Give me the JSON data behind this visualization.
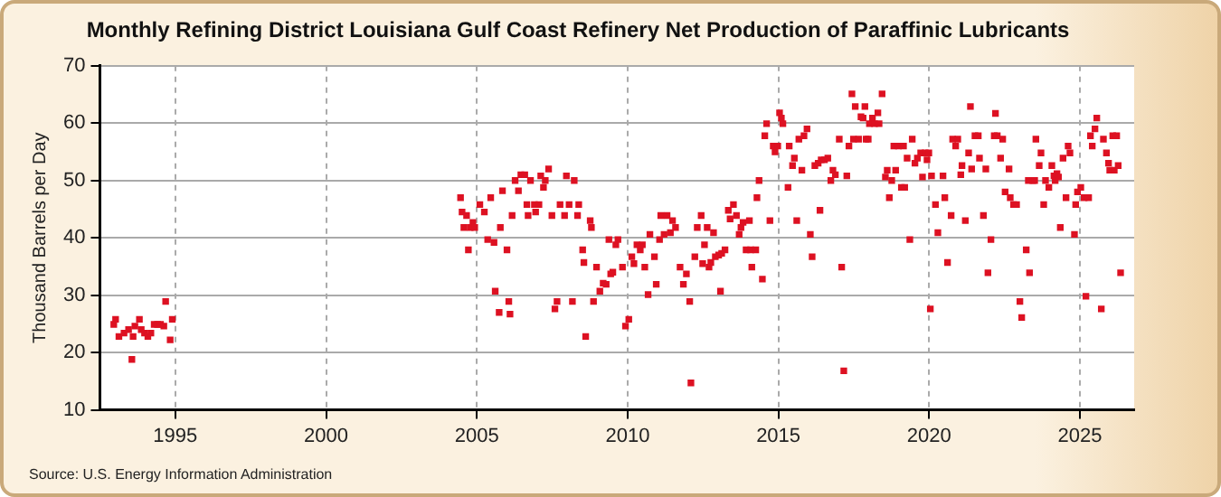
{
  "chart_data": {
    "type": "scatter",
    "title": "Monthly Refining District Louisiana Gulf Coast Refinery Net Production of Paraffinic Lubricants",
    "ylabel": "Thousand Barrels per Day",
    "annotations": [
      "Source: U.S. Energy Information Administration"
    ],
    "xlim": [
      1992.5,
      2026.8
    ],
    "xticks": [
      1995,
      2000,
      2005,
      2010,
      2015,
      2020,
      2025
    ],
    "ylim": [
      10,
      70
    ],
    "yticks": [
      10,
      20,
      30,
      40,
      50,
      60,
      70
    ],
    "grid": true,
    "legend": false,
    "marker": "square",
    "series": [
      {
        "color": "#dd1122",
        "x": [
          1992.96,
          1993.02,
          1993.13,
          1993.3,
          1993.45,
          1993.56,
          1993.6,
          1993.66,
          1993.81,
          1993.87,
          1993.98,
          1994.09,
          1994.19,
          1994.3,
          1994.41,
          1994.51,
          1994.62,
          1994.68,
          1994.83,
          1994.9,
          2004.46,
          2004.51,
          2004.57,
          2004.66,
          2004.72,
          2004.78,
          2004.87,
          2004.93,
          2005.1,
          2005.25,
          2005.36,
          2005.46,
          2005.57,
          2005.61,
          2005.74,
          2005.78,
          2005.85,
          2006.0,
          2006.06,
          2006.1,
          2006.17,
          2006.27,
          2006.38,
          2006.46,
          2006.59,
          2006.66,
          2006.7,
          2006.78,
          2006.91,
          2006.95,
          2007.06,
          2007.12,
          2007.21,
          2007.27,
          2007.38,
          2007.49,
          2007.59,
          2007.66,
          2007.76,
          2007.91,
          2007.97,
          2008.06,
          2008.17,
          2008.23,
          2008.34,
          2008.38,
          2008.51,
          2008.55,
          2008.61,
          2008.76,
          2008.8,
          2008.87,
          2008.97,
          2009.08,
          2009.19,
          2009.29,
          2009.38,
          2009.44,
          2009.51,
          2009.61,
          2009.68,
          2009.83,
          2009.93,
          2010.04,
          2010.14,
          2010.21,
          2010.31,
          2010.42,
          2010.49,
          2010.57,
          2010.68,
          2010.74,
          2010.89,
          2010.95,
          2011.06,
          2011.1,
          2011.21,
          2011.31,
          2011.42,
          2011.49,
          2011.59,
          2011.74,
          2011.85,
          2011.95,
          2012.06,
          2012.1,
          2012.23,
          2012.31,
          2012.44,
          2012.49,
          2012.55,
          2012.64,
          2012.7,
          2012.76,
          2012.85,
          2012.91,
          2013.02,
          2013.08,
          2013.12,
          2013.23,
          2013.34,
          2013.4,
          2013.51,
          2013.61,
          2013.7,
          2013.76,
          2013.83,
          2013.93,
          2014.04,
          2014.08,
          2014.12,
          2014.25,
          2014.29,
          2014.36,
          2014.47,
          2014.55,
          2014.61,
          2014.72,
          2014.83,
          2014.89,
          2014.98,
          2015.04,
          2015.1,
          2015.15,
          2015.32,
          2015.36,
          2015.47,
          2015.53,
          2015.61,
          2015.68,
          2015.78,
          2015.85,
          2015.95,
          2016.06,
          2016.12,
          2016.21,
          2016.32,
          2016.38,
          2016.42,
          2016.53,
          2016.64,
          2016.74,
          2016.81,
          2016.89,
          2017.02,
          2017.1,
          2017.17,
          2017.27,
          2017.34,
          2017.44,
          2017.49,
          2017.55,
          2017.66,
          2017.74,
          2017.81,
          2017.87,
          2017.91,
          2017.98,
          2018.02,
          2018.12,
          2018.19,
          2018.3,
          2018.34,
          2018.44,
          2018.55,
          2018.61,
          2018.68,
          2018.76,
          2018.83,
          2018.89,
          2018.98,
          2019.08,
          2019.15,
          2019.19,
          2019.27,
          2019.36,
          2019.44,
          2019.53,
          2019.61,
          2019.72,
          2019.78,
          2019.87,
          2019.93,
          2019.99,
          2020.04,
          2020.08,
          2020.21,
          2020.29,
          2020.46,
          2020.52,
          2020.61,
          2020.73,
          2020.78,
          2020.88,
          2020.95,
          2021.05,
          2021.09,
          2021.2,
          2021.31,
          2021.37,
          2021.41,
          2021.52,
          2021.63,
          2021.67,
          2021.8,
          2021.88,
          2021.95,
          2022.05,
          2022.16,
          2022.2,
          2022.26,
          2022.37,
          2022.44,
          2022.52,
          2022.65,
          2022.69,
          2022.8,
          2022.9,
          2023.01,
          2023.07,
          2023.22,
          2023.29,
          2023.33,
          2023.44,
          2023.5,
          2023.54,
          2023.65,
          2023.71,
          2023.8,
          2023.86,
          2023.97,
          2024.07,
          2024.14,
          2024.18,
          2024.24,
          2024.29,
          2024.35,
          2024.44,
          2024.54,
          2024.61,
          2024.67,
          2024.82,
          2024.86,
          2024.92,
          2025.03,
          2025.14,
          2025.2,
          2025.29,
          2025.35,
          2025.41,
          2025.5,
          2025.56,
          2025.71,
          2025.78,
          2025.88,
          2025.95,
          2025.99,
          2026.09,
          2026.14,
          2026.22,
          2026.27,
          2026.35
        ],
        "values": [
          24.9,
          25.8,
          22.8,
          23.4,
          24.0,
          18.8,
          22.8,
          24.6,
          25.8,
          24.0,
          23.4,
          22.8,
          23.4,
          24.9,
          24.9,
          24.9,
          24.6,
          28.9,
          22.2,
          25.8,
          47.0,
          44.5,
          41.8,
          43.9,
          37.9,
          41.8,
          42.7,
          41.8,
          45.8,
          44.5,
          39.7,
          47.0,
          39.2,
          30.7,
          27.0,
          41.8,
          48.2,
          37.9,
          28.9,
          26.7,
          43.9,
          50.0,
          48.2,
          51.0,
          51.0,
          45.8,
          43.9,
          50.0,
          45.8,
          44.5,
          45.8,
          50.8,
          48.8,
          50.0,
          52.0,
          43.9,
          27.6,
          28.9,
          45.8,
          43.9,
          50.8,
          45.8,
          28.9,
          50.0,
          43.9,
          45.8,
          37.9,
          35.7,
          22.8,
          43.0,
          41.8,
          28.9,
          34.9,
          30.7,
          32.1,
          31.9,
          39.7,
          33.7,
          34.0,
          38.8,
          39.7,
          34.9,
          24.6,
          25.8,
          36.7,
          35.5,
          38.8,
          37.9,
          38.8,
          34.9,
          30.1,
          40.6,
          36.7,
          31.9,
          39.7,
          43.9,
          40.6,
          43.9,
          40.9,
          43.0,
          41.8,
          34.9,
          31.9,
          33.7,
          28.9,
          14.7,
          36.7,
          41.8,
          43.9,
          35.5,
          38.8,
          41.8,
          34.9,
          35.7,
          40.9,
          36.7,
          37.0,
          30.7,
          37.3,
          37.9,
          44.8,
          43.3,
          45.8,
          43.9,
          40.6,
          41.8,
          42.7,
          37.9,
          43.0,
          37.9,
          34.9,
          37.9,
          47.0,
          50.0,
          32.8,
          57.8,
          59.9,
          43.0,
          56.0,
          55.0,
          56.0,
          61.8,
          60.9,
          59.9,
          48.8,
          56.0,
          52.6,
          53.9,
          43.0,
          57.2,
          51.8,
          57.8,
          59.0,
          40.6,
          36.7,
          52.6,
          53.0,
          44.8,
          53.6,
          53.6,
          53.9,
          50.0,
          51.8,
          51.0,
          57.2,
          34.9,
          16.8,
          50.8,
          56.0,
          65.1,
          57.2,
          62.9,
          57.2,
          61.1,
          60.9,
          62.9,
          57.2,
          57.2,
          59.9,
          60.9,
          59.9,
          61.8,
          59.9,
          65.1,
          50.6,
          51.8,
          47.0,
          50.0,
          56.0,
          51.8,
          56.0,
          48.8,
          56.0,
          48.8,
          53.9,
          39.7,
          57.2,
          53.0,
          53.9,
          54.8,
          50.6,
          54.8,
          53.6,
          54.8,
          27.6,
          50.8,
          45.8,
          40.9,
          50.8,
          47.0,
          35.7,
          43.9,
          57.2,
          56.0,
          57.2,
          51.0,
          52.6,
          43.0,
          54.8,
          62.9,
          52.0,
          57.8,
          57.8,
          53.9,
          43.9,
          52.0,
          33.9,
          39.7,
          57.8,
          61.7,
          57.8,
          53.9,
          57.2,
          48.0,
          52.0,
          47.0,
          45.8,
          45.8,
          28.9,
          26.1,
          37.9,
          50.0,
          33.9,
          50.0,
          50.0,
          57.2,
          52.6,
          54.8,
          45.8,
          50.0,
          48.8,
          52.6,
          50.8,
          50.0,
          51.2,
          50.6,
          41.8,
          53.9,
          47.0,
          56.0,
          54.8,
          40.6,
          45.8,
          48.0,
          48.8,
          47.0,
          29.8,
          47.0,
          57.8,
          56.0,
          59.0,
          60.9,
          27.6,
          57.2,
          54.8,
          53.0,
          51.8,
          57.8,
          51.8,
          57.8,
          52.6,
          33.9
        ]
      }
    ]
  }
}
